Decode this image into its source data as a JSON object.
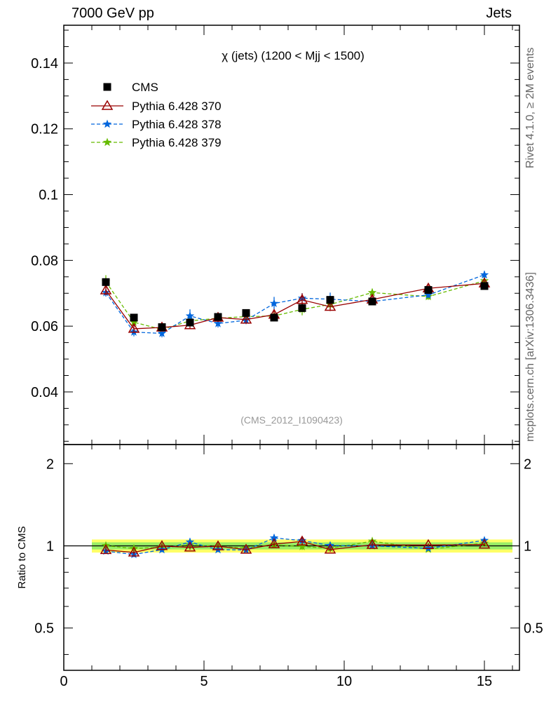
{
  "header": {
    "left": "7000 GeV pp",
    "right": "Jets",
    "side_top": "Rivet 4.1.0, ≥ 2M events",
    "side_bottom": "mcplots.cern.ch [arXiv:1306.3436]"
  },
  "colors": {
    "cms": "#000000",
    "p370": "#990000",
    "p378": "#0066dd",
    "p379": "#66bb00",
    "band_outer": "#ffff66",
    "band_inner": "#99ee66",
    "ref_line": "#000000",
    "watermark": "#999999"
  },
  "chart_data": {
    "type": "scatter",
    "title": "χ (jets) (1200 < Mjj < 1500)",
    "watermark": "(CMS_2012_I1090423)",
    "xlim": [
      0,
      16.25
    ],
    "ylim": [
      0.024,
      0.1515
    ],
    "ratio_ylim": [
      0.35,
      2.35
    ],
    "ratio_ylabel": "Ratio to CMS",
    "x_ticks": [
      0,
      5,
      10,
      15
    ],
    "x_tick_labels": [
      "0",
      "5",
      "10",
      "15"
    ],
    "y_ticks": [
      0.04,
      0.06,
      0.08,
      0.1,
      0.12,
      0.14
    ],
    "y_tick_labels": [
      "0.04",
      "0.06",
      "0.08",
      "0.1",
      "0.12",
      "0.14"
    ],
    "ratio_ticks": [
      0.5,
      1,
      2
    ],
    "ratio_tick_labels": [
      "0.5",
      "1",
      "2"
    ],
    "x": [
      1.5,
      2.5,
      3.5,
      4.5,
      5.5,
      6.5,
      7.5,
      8.5,
      9.5,
      11,
      13,
      15
    ],
    "band_x": [
      1,
      16
    ],
    "series": [
      {
        "name": "CMS",
        "key": "cms",
        "style": "square",
        "values": [
          0.0734,
          0.0626,
          0.0597,
          0.0611,
          0.0628,
          0.064,
          0.0626,
          0.0655,
          0.068,
          0.0675,
          0.071,
          0.0722
        ],
        "errors": [
          0.0012,
          0.001,
          0.0009,
          0.0009,
          0.0009,
          0.001,
          0.001,
          0.0012,
          0.0012,
          0.001,
          0.001,
          0.001
        ],
        "ratio_band": [
          0.055,
          0.055,
          0.055,
          0.055,
          0.055,
          0.055,
          0.055,
          0.055,
          0.055,
          0.055,
          0.055,
          0.055
        ],
        "ratio_band_inner": [
          0.03,
          0.03,
          0.03,
          0.03,
          0.03,
          0.03,
          0.03,
          0.03,
          0.03,
          0.03,
          0.03,
          0.03
        ]
      },
      {
        "name": "Pythia 6.428 370",
        "key": "p370",
        "style": "triangle",
        "values": [
          0.0709,
          0.0592,
          0.0596,
          0.0603,
          0.0626,
          0.062,
          0.0635,
          0.068,
          0.0659,
          0.0681,
          0.0715,
          0.073
        ],
        "errors": [
          0.0015,
          0.0012,
          0.0012,
          0.0012,
          0.0013,
          0.0012,
          0.0013,
          0.002,
          0.0013,
          0.0013,
          0.001,
          0.001
        ]
      },
      {
        "name": "Pythia 6.428 378",
        "key": "p378",
        "style": "star-dashed",
        "values": [
          0.0702,
          0.0582,
          0.0578,
          0.0631,
          0.0608,
          0.0618,
          0.0669,
          0.0685,
          0.0682,
          0.0675,
          0.0695,
          0.0756
        ],
        "errors": [
          0.0012,
          0.0013,
          0.0012,
          0.002,
          0.0012,
          0.0012,
          0.002,
          0.0015,
          0.002,
          0.001,
          0.001,
          0.0012
        ]
      },
      {
        "name": "Pythia 6.428 379",
        "key": "p379",
        "style": "star-dashed",
        "values": [
          0.0735,
          0.0612,
          0.059,
          0.0616,
          0.0624,
          0.0629,
          0.0631,
          0.0651,
          0.0666,
          0.0702,
          0.069,
          0.0738
        ],
        "errors": [
          0.002,
          0.0012,
          0.0012,
          0.0012,
          0.0012,
          0.0012,
          0.0012,
          0.0018,
          0.0013,
          0.0012,
          0.001,
          0.0012
        ]
      }
    ]
  }
}
